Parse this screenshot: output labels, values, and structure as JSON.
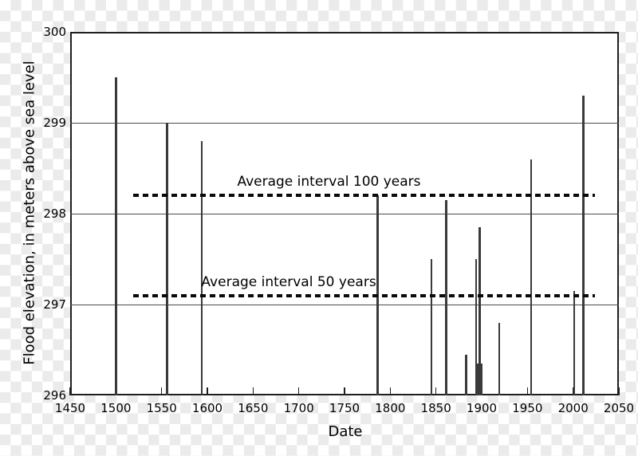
{
  "chart_data": {
    "type": "bar",
    "title": "",
    "xlabel": "Date",
    "ylabel": "Flood elevation, in meters above sea level",
    "xlim": [
      1450,
      2050
    ],
    "ylim": [
      296,
      300
    ],
    "x_ticks": [
      1450,
      1500,
      1550,
      1600,
      1650,
      1700,
      1750,
      1800,
      1850,
      1900,
      1950,
      2000,
      2050
    ],
    "y_ticks": [
      296,
      297,
      298,
      299,
      300
    ],
    "grid": "horizontal-only",
    "legend": "none",
    "points": [
      {
        "year": 1500,
        "elevation": 299.5
      },
      {
        "year": 1556,
        "elevation": 299.0
      },
      {
        "year": 1594,
        "elevation": 298.8
      },
      {
        "year": 1786,
        "elevation": 298.2
      },
      {
        "year": 1845,
        "elevation": 297.5
      },
      {
        "year": 1861,
        "elevation": 298.15
      },
      {
        "year": 1883,
        "elevation": 296.45
      },
      {
        "year": 1894,
        "elevation": 297.5
      },
      {
        "year": 1898,
        "elevation": 297.85
      },
      {
        "year": 1919,
        "elevation": 296.8
      },
      {
        "year": 1954,
        "elevation": 298.6
      },
      {
        "year": 2001,
        "elevation": 297.15
      },
      {
        "year": 2011,
        "elevation": 299.3
      }
    ],
    "flood_cluster": {
      "year_start": 1893.5,
      "year_end": 1900.5,
      "elevation": 296.35
    },
    "reference_lines": [
      {
        "label": "Average interval 100 years",
        "elevation": 298.2,
        "line_start_year": 1519,
        "line_end_year": 2024,
        "label_center_year": 1733
      },
      {
        "label": "Average interval 50 years",
        "elevation": 297.1,
        "line_start_year": 1519,
        "line_end_year": 2024,
        "label_center_year": 1689
      }
    ]
  },
  "colors": {
    "plot_background": "#ffffff",
    "axis": "#1f1f1f",
    "grid": "#4d4d4d",
    "spike": "#3a3a3a",
    "dashed_line": "#0a0a0a",
    "text": "#000000",
    "checker": "#ebebeb"
  }
}
